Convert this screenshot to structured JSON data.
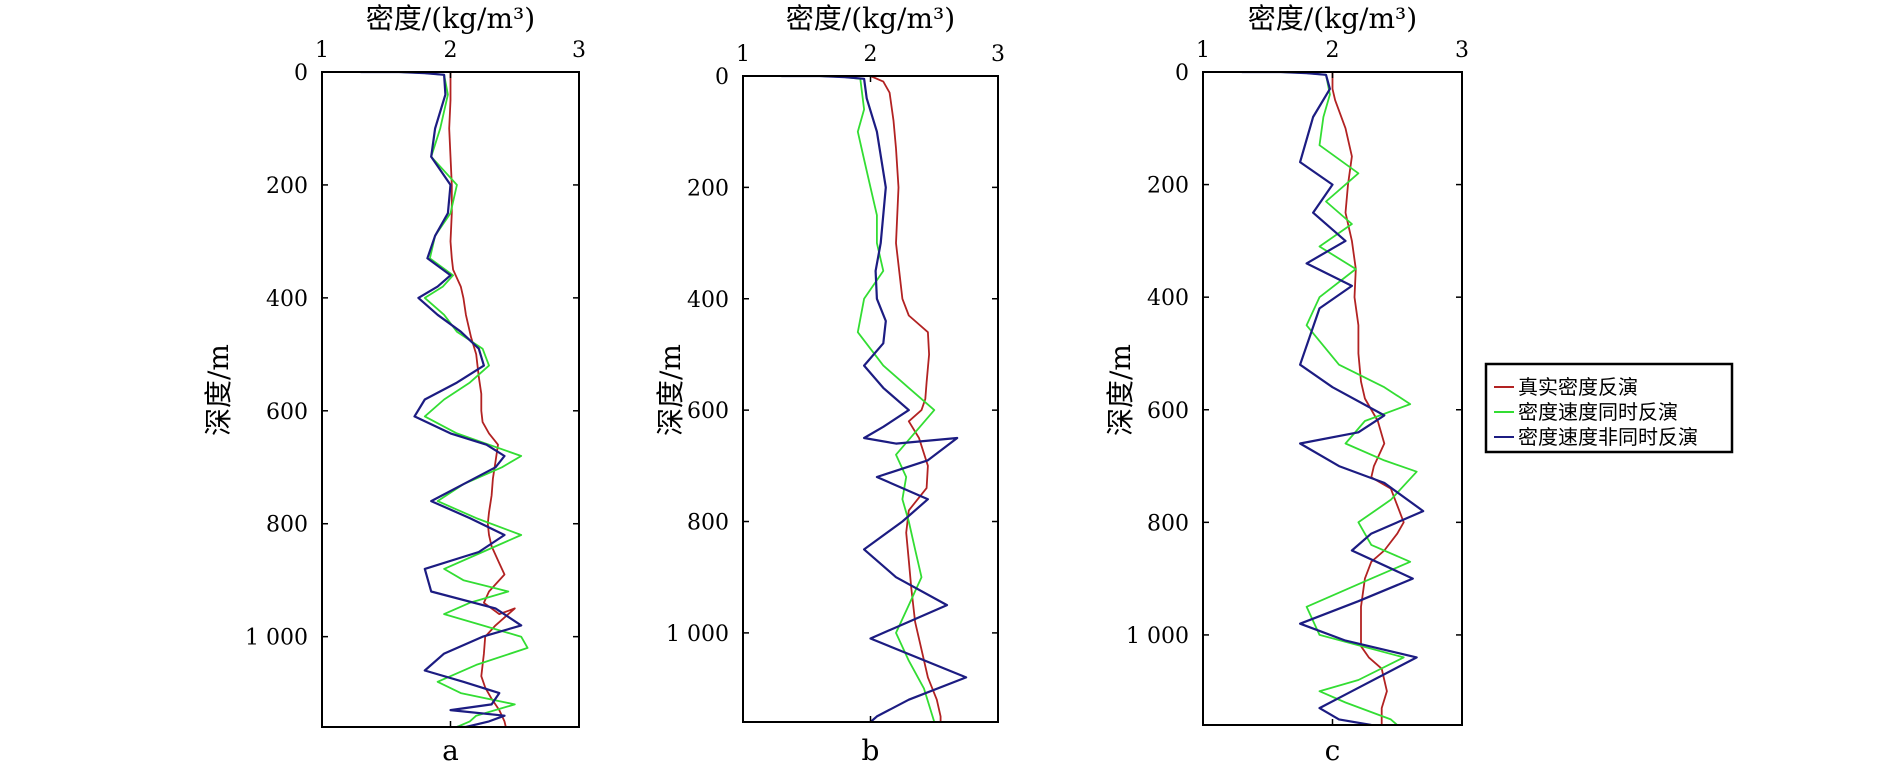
{
  "chart_data": [
    {
      "type": "line",
      "panel_label": "a",
      "xlabel": "密度/(kg/m³)",
      "ylabel": "深度/m",
      "xlim": [
        1,
        3
      ],
      "ylim": [
        0,
        1160
      ],
      "y_inverted": true,
      "x_ticks": [
        "1",
        "2",
        "3"
      ],
      "y_ticks": [
        "0",
        "200",
        "400",
        "600",
        "800",
        "1 000"
      ],
      "y_tick_values": [
        0,
        200,
        400,
        600,
        800,
        1000
      ],
      "series": [
        {
          "name": "真实密度反演",
          "color": "#b22222",
          "x": [
            2.0,
            2.0,
            1.99,
            2.0,
            2.01,
            2.01,
            2.0,
            2.01,
            2.02,
            2.08,
            2.1,
            2.12,
            2.16,
            2.2,
            2.22,
            2.24,
            2.24,
            2.25,
            2.3,
            2.37,
            2.35,
            2.33,
            2.32,
            2.3,
            2.29,
            2.3,
            2.32,
            2.38,
            2.42,
            2.3,
            2.26,
            2.38,
            2.5,
            2.35,
            2.27,
            2.26,
            2.25,
            2.24,
            2.27,
            2.32,
            2.38,
            2.42,
            2.43
          ],
          "y": [
            0,
            50,
            100,
            150,
            200,
            250,
            300,
            330,
            350,
            380,
            400,
            430,
            470,
            500,
            540,
            570,
            600,
            620,
            640,
            660,
            690,
            720,
            750,
            780,
            800,
            820,
            840,
            870,
            890,
            920,
            940,
            960,
            950,
            980,
            1000,
            1030,
            1050,
            1070,
            1090,
            1110,
            1130,
            1150,
            1160
          ]
        },
        {
          "name": "密度速度同时反演",
          "color": "#33dd33",
          "x": [
            1.3,
            1.6,
            1.8,
            1.95,
            1.98,
            1.92,
            1.85,
            2.05,
            2.0,
            1.88,
            1.84,
            2.02,
            1.94,
            1.8,
            1.95,
            2.05,
            2.25,
            2.3,
            2.15,
            1.95,
            1.8,
            2.05,
            2.3,
            2.55,
            2.4,
            2.1,
            1.9,
            2.2,
            2.55,
            2.25,
            1.95,
            2.1,
            2.45,
            2.15,
            1.95,
            2.25,
            2.55,
            2.6,
            2.2,
            1.9,
            2.08,
            2.5,
            2.2,
            2.15,
            2.05
          ],
          "y": [
            0,
            0,
            2,
            5,
            40,
            100,
            150,
            200,
            250,
            290,
            330,
            360,
            380,
            400,
            430,
            460,
            490,
            520,
            550,
            580,
            610,
            640,
            660,
            680,
            700,
            730,
            760,
            790,
            820,
            850,
            880,
            900,
            920,
            940,
            960,
            980,
            1000,
            1020,
            1050,
            1080,
            1100,
            1120,
            1140,
            1150,
            1160
          ]
        },
        {
          "name": "密度速度非同时反演",
          "color": "#1c1c82",
          "x": [
            1.3,
            1.6,
            1.8,
            1.95,
            1.96,
            1.88,
            1.85,
            2.0,
            1.98,
            1.88,
            1.82,
            2.0,
            1.9,
            1.75,
            1.9,
            2.08,
            2.22,
            2.26,
            2.05,
            1.8,
            1.72,
            2.0,
            2.28,
            2.42,
            2.35,
            2.1,
            1.85,
            2.15,
            2.42,
            2.22,
            1.8,
            1.85,
            2.35,
            2.55,
            2.25,
            1.95,
            1.8,
            2.1,
            2.38,
            2.32,
            2.0,
            2.42,
            2.3,
            2.12,
            2.05
          ],
          "y": [
            0,
            0,
            2,
            5,
            40,
            100,
            150,
            200,
            250,
            290,
            330,
            360,
            380,
            400,
            430,
            460,
            490,
            520,
            550,
            580,
            610,
            640,
            660,
            680,
            700,
            730,
            760,
            790,
            820,
            850,
            880,
            920,
            950,
            980,
            1000,
            1030,
            1060,
            1080,
            1100,
            1120,
            1130,
            1140,
            1150,
            1160,
            1160
          ]
        }
      ]
    },
    {
      "type": "line",
      "panel_label": "b",
      "xlabel": "密度/(kg/m³)",
      "ylabel": "深度/m",
      "xlim": [
        1,
        3
      ],
      "ylim": [
        0,
        1160
      ],
      "y_inverted": true,
      "x_ticks": [
        "1",
        "2",
        "3"
      ],
      "y_ticks": [
        "0",
        "200",
        "400",
        "600",
        "800",
        "1 000"
      ],
      "y_tick_values": [
        0,
        200,
        400,
        600,
        800,
        1000
      ],
      "series": [
        {
          "name": "真实密度反演",
          "color": "#b22222",
          "x": [
            2.0,
            2.1,
            2.15,
            2.18,
            2.2,
            2.22,
            2.2,
            2.25,
            2.3,
            2.45,
            2.46,
            2.44,
            2.43,
            2.4,
            2.3,
            2.38,
            2.45,
            2.44,
            2.3,
            2.28,
            2.3,
            2.32,
            2.35,
            2.4,
            2.45,
            2.52,
            2.55,
            2.55
          ],
          "y": [
            0,
            10,
            30,
            80,
            130,
            200,
            300,
            400,
            430,
            460,
            500,
            550,
            580,
            600,
            620,
            650,
            700,
            740,
            780,
            820,
            870,
            920,
            980,
            1030,
            1080,
            1120,
            1150,
            1160
          ]
        },
        {
          "name": "密度速度同时反演",
          "color": "#33dd33",
          "x": [
            1.3,
            1.6,
            1.8,
            1.92,
            1.95,
            1.9,
            1.95,
            2.0,
            2.05,
            2.05,
            2.1,
            1.95,
            1.9,
            2.1,
            2.3,
            2.5,
            2.35,
            2.2,
            2.28,
            2.25,
            2.3,
            2.35,
            2.4,
            2.3,
            2.2,
            2.3,
            2.42,
            2.5
          ],
          "y": [
            0,
            0,
            2,
            5,
            60,
            100,
            150,
            200,
            250,
            300,
            350,
            400,
            460,
            520,
            560,
            600,
            640,
            680,
            720,
            760,
            800,
            850,
            900,
            950,
            1000,
            1050,
            1100,
            1160
          ]
        },
        {
          "name": "密度速度非同时反演",
          "color": "#1c1c82",
          "x": [
            1.3,
            1.6,
            1.8,
            1.95,
            1.97,
            2.05,
            2.12,
            2.08,
            2.04,
            2.05,
            2.12,
            2.1,
            1.95,
            2.1,
            2.3,
            2.1,
            1.95,
            2.2,
            2.68,
            2.45,
            2.05,
            2.45,
            2.25,
            1.95,
            2.2,
            2.6,
            2.0,
            2.75,
            2.3,
            2.05,
            2.0
          ],
          "y": [
            0,
            0,
            2,
            5,
            40,
            100,
            200,
            300,
            350,
            400,
            440,
            480,
            520,
            560,
            600,
            630,
            650,
            660,
            650,
            690,
            720,
            760,
            800,
            850,
            900,
            950,
            1010,
            1080,
            1120,
            1150,
            1160
          ]
        }
      ]
    },
    {
      "type": "line",
      "panel_label": "c",
      "xlabel": "密度/(kg/m³)",
      "ylabel": "深度/m",
      "xlim": [
        1,
        3
      ],
      "ylim": [
        0,
        1160
      ],
      "y_inverted": true,
      "x_ticks": [
        "1",
        "2",
        "3"
      ],
      "y_ticks": [
        "0",
        "200",
        "400",
        "600",
        "800",
        "1 000"
      ],
      "y_tick_values": [
        0,
        200,
        400,
        600,
        800,
        1000
      ],
      "series": [
        {
          "name": "真实密度反演",
          "color": "#b22222",
          "x": [
            2.0,
            2.0,
            2.02,
            2.1,
            2.15,
            2.12,
            2.1,
            2.15,
            2.18,
            2.17,
            2.2,
            2.2,
            2.22,
            2.25,
            2.35,
            2.4,
            2.32,
            2.3,
            2.45,
            2.5,
            2.55,
            2.5,
            2.4,
            2.3,
            2.25,
            2.22,
            2.22,
            2.22,
            2.28,
            2.38,
            2.4,
            2.42,
            2.38,
            2.38
          ],
          "y": [
            0,
            30,
            50,
            100,
            150,
            200,
            250,
            300,
            350,
            400,
            450,
            500,
            550,
            580,
            620,
            660,
            700,
            720,
            740,
            770,
            800,
            820,
            850,
            870,
            900,
            950,
            1000,
            1020,
            1040,
            1060,
            1080,
            1100,
            1130,
            1160
          ]
        },
        {
          "name": "密度速度同时反演",
          "color": "#33dd33",
          "x": [
            1.3,
            1.6,
            1.8,
            1.95,
            1.98,
            1.93,
            1.9,
            2.2,
            1.95,
            2.15,
            1.9,
            2.18,
            1.9,
            1.8,
            2.05,
            2.4,
            2.6,
            2.25,
            2.1,
            2.4,
            2.65,
            2.45,
            2.2,
            2.3,
            2.6,
            2.3,
            1.8,
            1.9,
            2.55,
            2.2,
            1.9,
            2.1,
            2.45,
            2.5
          ],
          "y": [
            0,
            0,
            2,
            5,
            40,
            80,
            130,
            180,
            230,
            270,
            310,
            350,
            400,
            450,
            520,
            560,
            590,
            620,
            660,
            690,
            710,
            760,
            800,
            840,
            870,
            900,
            950,
            1000,
            1040,
            1080,
            1100,
            1120,
            1150,
            1160
          ]
        },
        {
          "name": "密度速度非同时反演",
          "color": "#1c1c82",
          "x": [
            1.3,
            1.6,
            1.8,
            1.95,
            1.98,
            1.85,
            1.8,
            1.75,
            2.0,
            1.85,
            2.1,
            1.8,
            2.15,
            1.9,
            1.75,
            2.0,
            2.4,
            2.2,
            1.75,
            2.05,
            2.4,
            2.7,
            2.3,
            2.15,
            2.62,
            2.2,
            1.75,
            2.1,
            2.65,
            2.15,
            1.9,
            2.05,
            2.3
          ],
          "y": [
            0,
            0,
            2,
            5,
            30,
            80,
            120,
            160,
            200,
            250,
            300,
            340,
            380,
            420,
            520,
            560,
            610,
            640,
            660,
            700,
            730,
            780,
            820,
            850,
            900,
            940,
            980,
            1010,
            1040,
            1100,
            1130,
            1150,
            1160
          ]
        }
      ]
    }
  ],
  "legend": {
    "placement": "right",
    "items": [
      "真实密度反演",
      "密度速度同时反演",
      "密度速度非同时反演"
    ]
  }
}
